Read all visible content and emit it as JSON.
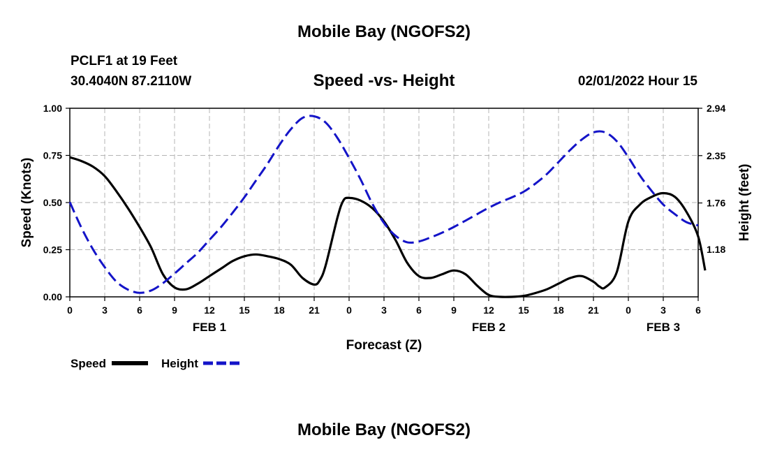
{
  "page": {
    "title_top": "Mobile Bay (NGOFS2)",
    "station": "PCLF1 at 19 Feet",
    "coords": "30.4040N  87.2110W",
    "timestamp": "02/01/2022 Hour 15",
    "title_bottom": "Mobile Bay (NGOFS2)"
  },
  "chart_data": {
    "type": "line",
    "title": "Speed -vs- Height",
    "xlabel": "Forecast (Z)",
    "ylabel_left": "Speed (Knots)",
    "ylabel_right": "Height (feet)",
    "xlim": [
      0,
      54
    ],
    "ylim_left": [
      0,
      1.0
    ],
    "ylim_right": [
      0.59,
      2.94
    ],
    "x_ticks": [
      0,
      3,
      6,
      9,
      12,
      15,
      18,
      21,
      24,
      27,
      30,
      33,
      36,
      39,
      42,
      45,
      48,
      51,
      54
    ],
    "x_tick_labels": [
      "0",
      "3",
      "6",
      "9",
      "12",
      "15",
      "18",
      "21",
      "0",
      "3",
      "6",
      "9",
      "12",
      "15",
      "18",
      "21",
      "0",
      "3",
      "6"
    ],
    "y_left_ticks": [
      0,
      0.25,
      0.5,
      0.75,
      1.0
    ],
    "y_left_tick_labels": [
      "0.00",
      "0.25",
      "0.50",
      "0.75",
      "1.00"
    ],
    "y_right_ticks": [
      1.18,
      1.76,
      2.35,
      2.94
    ],
    "y_right_tick_labels": [
      "1.18",
      "1.76",
      "2.35",
      "2.94"
    ],
    "date_labels": [
      {
        "x": 12,
        "label": "FEB 1"
      },
      {
        "x": 36,
        "label": "FEB 2"
      },
      {
        "x": 51,
        "label": "FEB 3"
      }
    ],
    "grid": true,
    "legend_position": "bottom-left",
    "series": [
      {
        "name": "Speed",
        "axis": "left",
        "color": "#000000",
        "dash": "solid",
        "points": [
          [
            0,
            0.74
          ],
          [
            1,
            0.72
          ],
          [
            2,
            0.69
          ],
          [
            3,
            0.64
          ],
          [
            4,
            0.56
          ],
          [
            5,
            0.47
          ],
          [
            6,
            0.37
          ],
          [
            7,
            0.26
          ],
          [
            8,
            0.12
          ],
          [
            9,
            0.05
          ],
          [
            10,
            0.04
          ],
          [
            11,
            0.07
          ],
          [
            12,
            0.11
          ],
          [
            13,
            0.15
          ],
          [
            14,
            0.19
          ],
          [
            15,
            0.215
          ],
          [
            16,
            0.225
          ],
          [
            17,
            0.215
          ],
          [
            18,
            0.2
          ],
          [
            19,
            0.17
          ],
          [
            20,
            0.1
          ],
          [
            21,
            0.065
          ],
          [
            21.5,
            0.09
          ],
          [
            22,
            0.17
          ],
          [
            23,
            0.42
          ],
          [
            23.5,
            0.51
          ],
          [
            24,
            0.525
          ],
          [
            25,
            0.51
          ],
          [
            26,
            0.47
          ],
          [
            27,
            0.4
          ],
          [
            28,
            0.3
          ],
          [
            29,
            0.18
          ],
          [
            30,
            0.11
          ],
          [
            31,
            0.1
          ],
          [
            32,
            0.12
          ],
          [
            33,
            0.14
          ],
          [
            34,
            0.12
          ],
          [
            35,
            0.06
          ],
          [
            36,
            0.01
          ],
          [
            37,
            0.0
          ],
          [
            38,
            0.0
          ],
          [
            39,
            0.005
          ],
          [
            40,
            0.02
          ],
          [
            41,
            0.04
          ],
          [
            42,
            0.07
          ],
          [
            43,
            0.1
          ],
          [
            44,
            0.11
          ],
          [
            45,
            0.08
          ],
          [
            45.5,
            0.055
          ],
          [
            46,
            0.05
          ],
          [
            47,
            0.13
          ],
          [
            48,
            0.4
          ],
          [
            49,
            0.49
          ],
          [
            50,
            0.53
          ],
          [
            51,
            0.55
          ],
          [
            52,
            0.53
          ],
          [
            53,
            0.45
          ],
          [
            54,
            0.32
          ],
          [
            54.6,
            0.14
          ]
        ]
      },
      {
        "name": "Height",
        "axis": "right",
        "color": "#1414c8",
        "dash": "dashed",
        "points": [
          [
            0,
            1.77
          ],
          [
            1,
            1.45
          ],
          [
            2,
            1.18
          ],
          [
            3,
            0.96
          ],
          [
            4,
            0.78
          ],
          [
            5,
            0.68
          ],
          [
            6,
            0.64
          ],
          [
            7,
            0.67
          ],
          [
            8,
            0.76
          ],
          [
            9,
            0.88
          ],
          [
            10,
            1.01
          ],
          [
            11,
            1.14
          ],
          [
            12,
            1.3
          ],
          [
            13,
            1.46
          ],
          [
            14,
            1.64
          ],
          [
            15,
            1.83
          ],
          [
            16,
            2.04
          ],
          [
            17,
            2.25
          ],
          [
            18,
            2.48
          ],
          [
            19,
            2.68
          ],
          [
            20,
            2.82
          ],
          [
            21,
            2.84
          ],
          [
            22,
            2.76
          ],
          [
            23,
            2.57
          ],
          [
            24,
            2.32
          ],
          [
            25,
            2.05
          ],
          [
            26,
            1.75
          ],
          [
            27,
            1.51
          ],
          [
            28,
            1.35
          ],
          [
            29,
            1.27
          ],
          [
            30,
            1.28
          ],
          [
            31,
            1.33
          ],
          [
            32,
            1.39
          ],
          [
            33,
            1.46
          ],
          [
            34,
            1.54
          ],
          [
            35,
            1.62
          ],
          [
            36,
            1.7
          ],
          [
            37,
            1.77
          ],
          [
            38,
            1.83
          ],
          [
            39,
            1.9
          ],
          [
            40,
            2.0
          ],
          [
            41,
            2.12
          ],
          [
            42,
            2.27
          ],
          [
            43,
            2.42
          ],
          [
            44,
            2.55
          ],
          [
            45,
            2.64
          ],
          [
            46,
            2.64
          ],
          [
            47,
            2.53
          ],
          [
            48,
            2.33
          ],
          [
            49,
            2.1
          ],
          [
            50,
            1.91
          ],
          [
            51,
            1.74
          ],
          [
            52,
            1.62
          ],
          [
            53,
            1.52
          ],
          [
            54,
            1.48
          ]
        ]
      }
    ]
  }
}
